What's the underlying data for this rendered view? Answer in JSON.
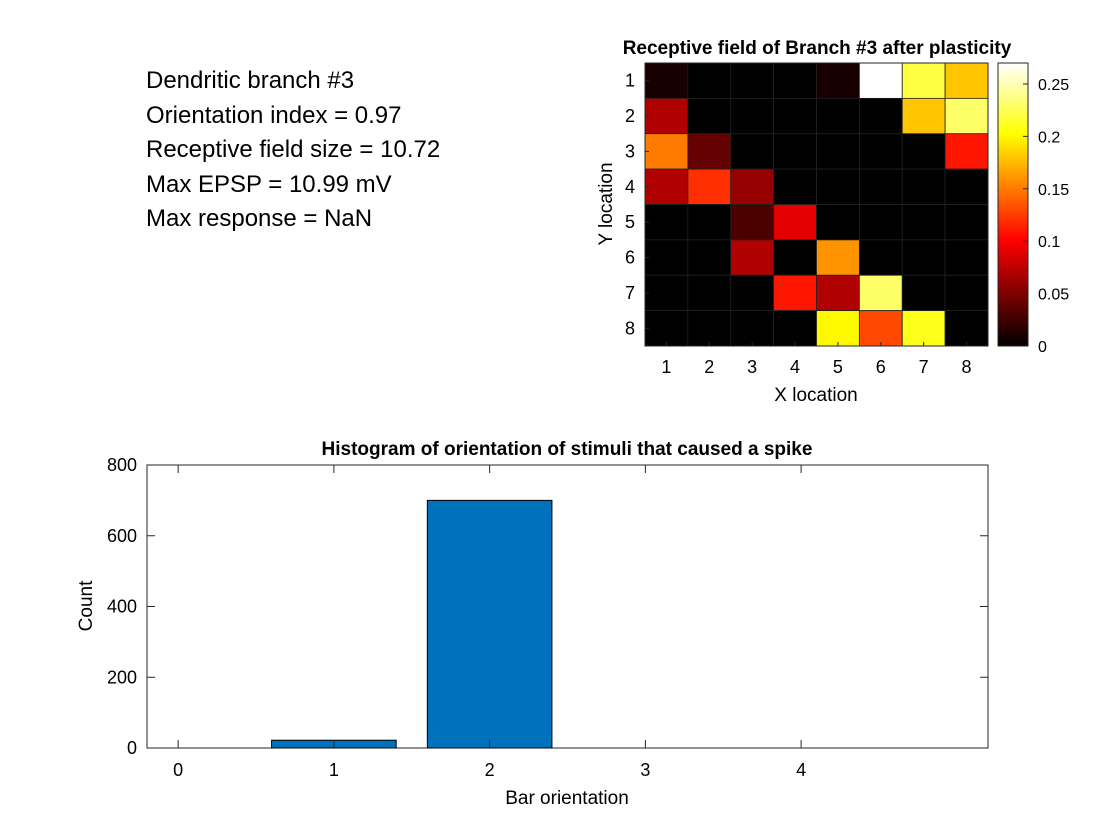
{
  "info": {
    "branch": "Dendritic branch #3",
    "orientation_index": "Orientation index = 0.97",
    "rf_size": "Receptive field size = 10.72",
    "max_epsp": "Max EPSP = 10.99 mV",
    "max_response": "Max response = NaN"
  },
  "chart_data": [
    {
      "type": "heatmap",
      "title": "Receptive field of Branch #3 after plasticity",
      "xlabel": "X location",
      "ylabel": "Y location",
      "x_ticks": [
        "1",
        "2",
        "3",
        "4",
        "5",
        "6",
        "7",
        "8"
      ],
      "y_ticks": [
        "1",
        "2",
        "3",
        "4",
        "5",
        "6",
        "7",
        "8"
      ],
      "values": [
        [
          0.01,
          0.0,
          0.0,
          0.0,
          0.01,
          0.27,
          0.22,
          0.18
        ],
        [
          0.07,
          0.0,
          0.0,
          0.0,
          0.0,
          0.0,
          0.18,
          0.23
        ],
        [
          0.15,
          0.04,
          0.0,
          0.0,
          0.0,
          0.0,
          0.0,
          0.11
        ],
        [
          0.07,
          0.12,
          0.06,
          0.0,
          0.0,
          0.0,
          0.0,
          0.0
        ],
        [
          0.0,
          0.0,
          0.03,
          0.09,
          0.0,
          0.0,
          0.0,
          0.0
        ],
        [
          0.0,
          0.0,
          0.07,
          0.0,
          0.16,
          0.0,
          0.0,
          0.0
        ],
        [
          0.0,
          0.0,
          0.0,
          0.11,
          0.07,
          0.23,
          0.0,
          0.0
        ],
        [
          0.0,
          0.0,
          0.0,
          0.0,
          0.2,
          0.13,
          0.21,
          0.0
        ]
      ],
      "colormap": "hot",
      "clim": [
        0,
        0.27
      ],
      "colorbar_ticks": [
        "0",
        "0.05",
        "0.1",
        "0.15",
        "0.2",
        "0.25"
      ],
      "colorbar_tick_values": [
        0,
        0.05,
        0.1,
        0.15,
        0.2,
        0.25
      ]
    },
    {
      "type": "bar",
      "title": "Histogram of orientation of stimuli that caused a spike",
      "xlabel": "Bar orientation",
      "ylabel": "Count",
      "categories": [
        1,
        2,
        3,
        4
      ],
      "values": [
        22,
        700,
        0,
        0
      ],
      "xlim": [
        -0.2,
        5.2
      ],
      "ylim": [
        0,
        800
      ],
      "x_ticks": [
        "0",
        "1",
        "2",
        "3",
        "4"
      ],
      "x_tick_values": [
        0,
        1,
        2,
        3,
        4
      ],
      "y_ticks": [
        "0",
        "200",
        "400",
        "600",
        "800"
      ],
      "y_tick_values": [
        0,
        200,
        400,
        600,
        800
      ],
      "bar_color": "#0072BD"
    }
  ]
}
